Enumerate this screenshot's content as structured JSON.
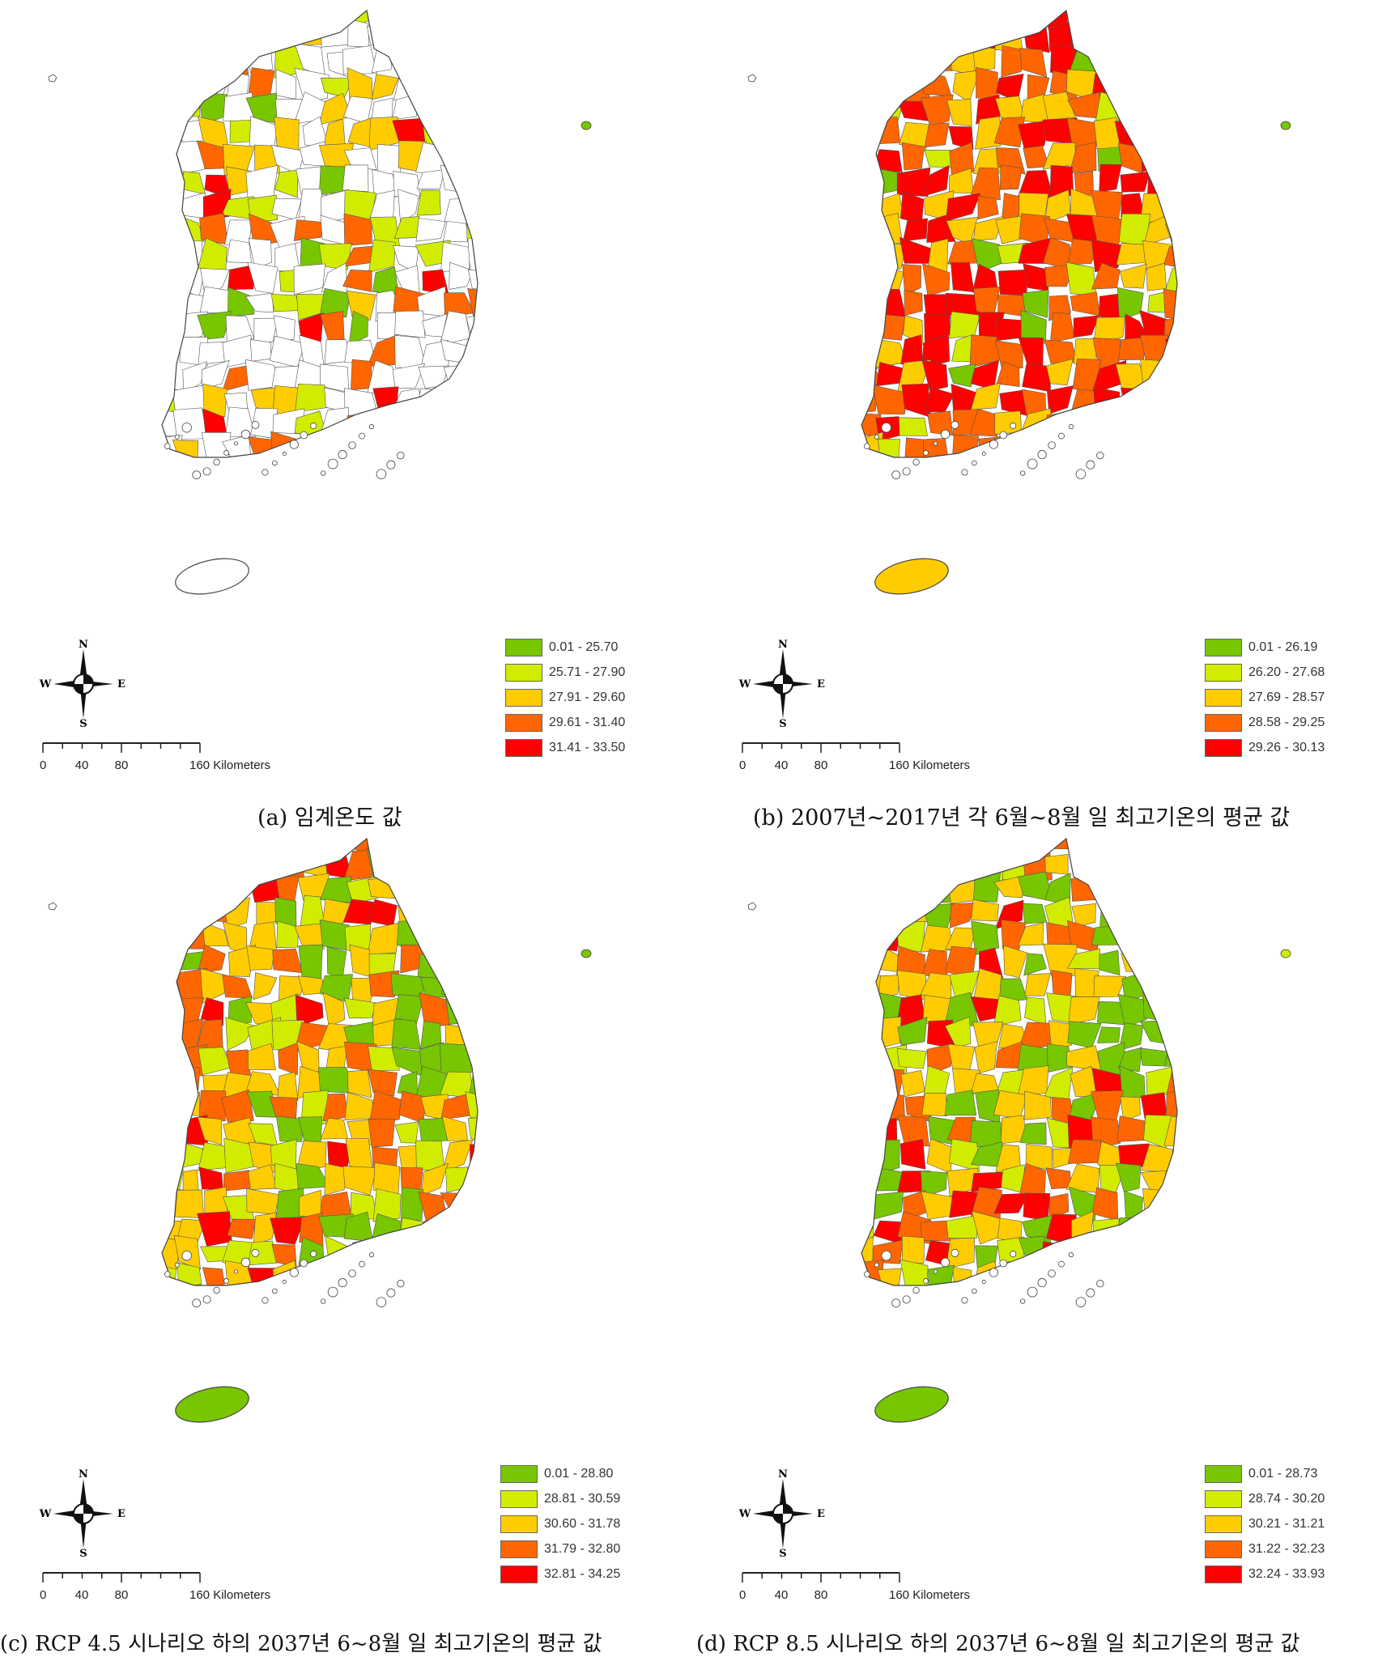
{
  "palette": [
    "#77c600",
    "#d2ec00",
    "#ffcc00",
    "#ff6600",
    "#ff0000"
  ],
  "compass": {
    "n": "N",
    "s": "S",
    "e": "E",
    "w": "W"
  },
  "scale": {
    "ticks": [
      "0",
      "40",
      "80",
      "160 Kilometers"
    ]
  },
  "panels": [
    {
      "id": "a",
      "caption": "(a) 임계온도 값",
      "legend": [
        "0.01 - 25.70",
        "25.71 - 27.90",
        "27.91 - 29.60",
        "29.61 - 31.40",
        "31.41 - 33.50"
      ],
      "jeju_color": "#ffffff",
      "ulleung_color": "#77c600"
    },
    {
      "id": "b",
      "caption": "(b) 2007년~2017년 각 6월~8월 일 최고기온의 평균 값",
      "legend": [
        "0.01 - 26.19",
        "26.20 - 27.68",
        "27.69 - 28.57",
        "28.58 - 29.25",
        "29.26 - 30.13"
      ],
      "jeju_color": "#ffcc00",
      "ulleung_color": "#77c600"
    },
    {
      "id": "c",
      "caption": "(c) RCP 4.5 시나리오 하의 2037년 6~8월 일 최고기온의 평균 값",
      "legend": [
        "0.01 - 28.80",
        "28.81 - 30.59",
        "30.60 - 31.78",
        "31.79 - 32.80",
        "32.81 - 34.25"
      ],
      "jeju_color": "#77c600",
      "ulleung_color": "#77c600"
    },
    {
      "id": "d",
      "caption": "(d) RCP 8.5 시나리오 하의 2037년 6~8월 일 최고기온의 평균 값",
      "legend": [
        "0.01 - 28.73",
        "28.74 - 30.20",
        "30.21 - 31.21",
        "31.22 - 32.23",
        "32.24 - 33.93"
      ],
      "jeju_color": "#77c600",
      "ulleung_color": "#d2ec00"
    }
  ]
}
